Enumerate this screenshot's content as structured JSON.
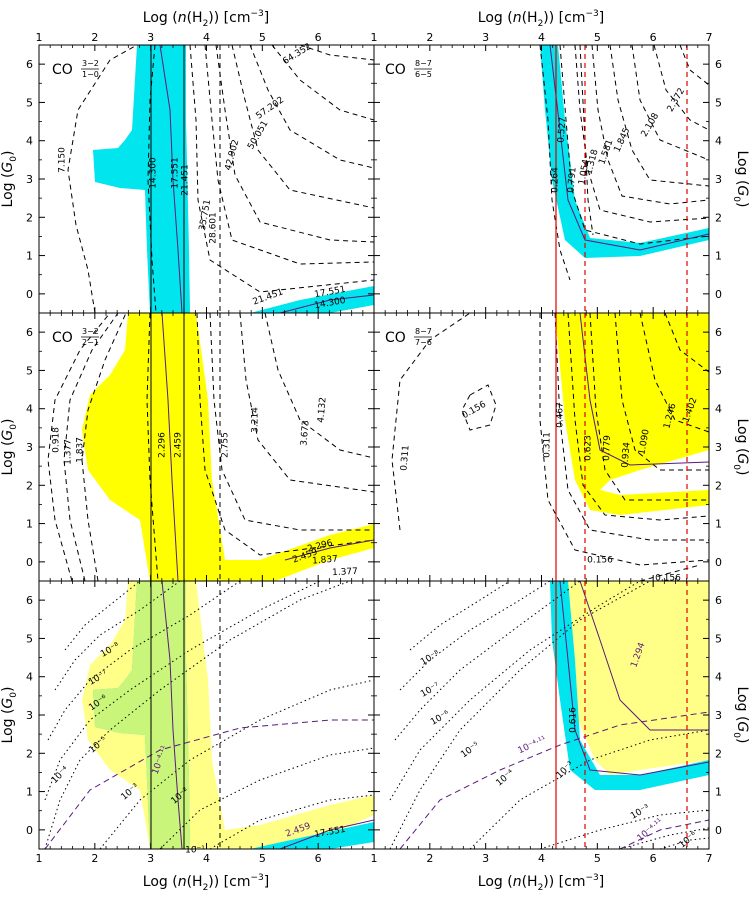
{
  "chart_data": [
    {
      "type": "line",
      "panel": "CO J=3-2/1-0",
      "label_main": "CO",
      "label_num": "3−2",
      "label_den": "1−0",
      "xlim": [
        1,
        7
      ],
      "ylim": [
        -0.5,
        6.5
      ],
      "contour_labels": [
        "64.352",
        "57.202",
        "50.051",
        "42.902",
        "35.751",
        "28.601",
        "21.451",
        "17.551",
        "14.300",
        "7.150",
        "21.451",
        "17.551",
        "14.300"
      ],
      "band_color": "#00e5ee"
    },
    {
      "type": "line",
      "panel": "CO J=8-7/6-5",
      "label_main": "CO",
      "label_num": "8−7",
      "label_den": "6−5",
      "xlim": [
        1,
        7
      ],
      "ylim": [
        -0.5,
        6.5
      ],
      "contour_labels": [
        "2.372",
        "2.108",
        "1.845",
        "1.581",
        "1.318",
        "1.054",
        "0.791",
        "0.527",
        "0.264"
      ],
      "band_color": "#00e5ee"
    },
    {
      "type": "line",
      "panel": "CO J=3-2/2-1",
      "label_main": "CO",
      "label_num": "3−2",
      "label_den": "2−1",
      "xlim": [
        1,
        7
      ],
      "ylim": [
        -0.5,
        6.5
      ],
      "contour_labels": [
        "4.132",
        "3.673",
        "3.214",
        "2.755",
        "2.459",
        "2.296",
        "1.837",
        "1.377",
        "0.918",
        "2.459",
        "2.296",
        "1.837",
        "1.377"
      ],
      "band_color": "#ffff00"
    },
    {
      "type": "line",
      "panel": "CO J=8-7/7-6",
      "label_main": "CO",
      "label_num": "8−7",
      "label_den": "7−6",
      "xlim": [
        1,
        7
      ],
      "ylim": [
        -0.5,
        6.5
      ],
      "contour_labels": [
        "1.402",
        "1.246",
        "1.090",
        "0.934",
        "0.779",
        "0.623",
        "0.467",
        "0.311",
        "0.156",
        "0.311",
        "0.156",
        "0.156"
      ],
      "band_color": "#ffff00"
    },
    {
      "type": "line",
      "panel": "combined left",
      "xlim": [
        1,
        7
      ],
      "ylim": [
        -0.5,
        6.5
      ],
      "contour_labels": [
        "10⁻⁸",
        "10⁻⁷",
        "10⁻⁶",
        "10⁻⁵",
        "10⁻⁴",
        "10⁻³",
        "10⁻²",
        "10⁻¹",
        "10⁻⁴·¹¹",
        "2.459",
        "17.551"
      ]
    },
    {
      "type": "line",
      "panel": "combined right",
      "xlim": [
        1,
        7
      ],
      "ylim": [
        -0.5,
        6.5
      ],
      "contour_labels": [
        "10⁻⁸",
        "10⁻⁷",
        "10⁻⁶",
        "10⁻⁵",
        "10⁻⁴",
        "10⁻³",
        "10⁻⁴·¹¹",
        "1.294",
        "0.616",
        "10⁻³",
        "10⁻⁴·¹¹",
        "10⁻⁶"
      ]
    }
  ],
  "axes": {
    "xlabel": "Log (n(H₂)) [cm⁻³]",
    "xlabel_prefix": "Log (",
    "xlabel_n": "n",
    "xlabel_h": "(H",
    "xlabel_sub": "2",
    "xlabel_suffix": ")) [cm",
    "xlabel_exp": "−3",
    "xlabel_end": "]",
    "ylabel": "Log (G₀)",
    "ylabel_prefix": "Log (",
    "ylabel_g": "G",
    "ylabel_sub": "0",
    "ylabel_end": ")",
    "xticks_left": [
      "1",
      "2",
      "3",
      "4",
      "5",
      "6",
      ""
    ],
    "xticks_right": [
      "1",
      "2",
      "3",
      "4",
      "5",
      "6",
      "7"
    ],
    "yticks": [
      "0",
      "1",
      "2",
      "3",
      "4",
      "5",
      "6"
    ]
  },
  "colors": {
    "cyan": "#00e5ee",
    "yellow": "#ffff00",
    "green": "#c8f57a",
    "purple": "#5a1a7a",
    "red": "#e00000"
  }
}
